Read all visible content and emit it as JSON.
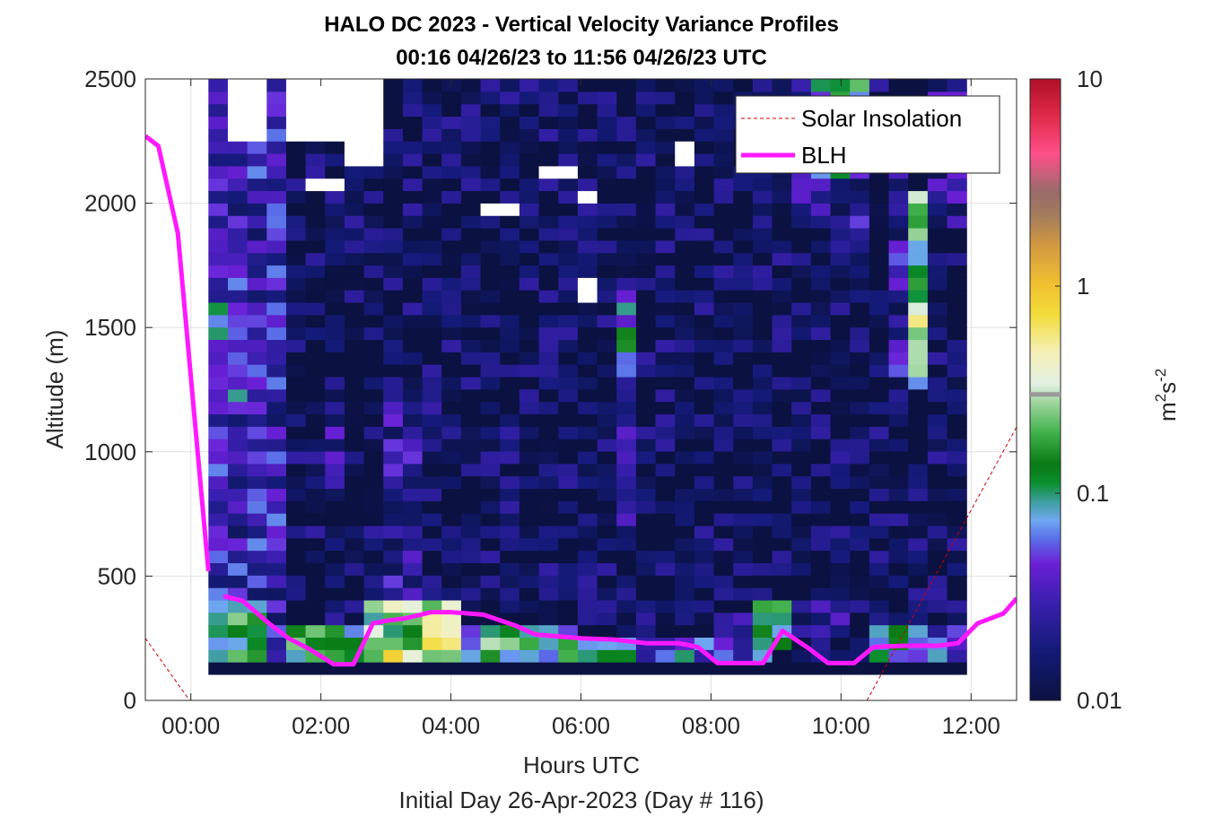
{
  "chart_data": {
    "type": "heatmap",
    "title": "HALO DC 2023 - Vertical Velocity Variance Profiles",
    "subtitle": "00:16 04/26/23 to 11:56 04/26/23  UTC",
    "xlabel": "Hours UTC",
    "xlabel2": "Initial Day 26-Apr-2023 (Day # 116)",
    "ylabel": "Altitude (m)",
    "xlim_hours": [
      -0.7,
      12.7
    ],
    "ylim": [
      0,
      2500
    ],
    "x_ticks": [
      {
        "value": 0,
        "label": "00:00"
      },
      {
        "value": 2,
        "label": "02:00"
      },
      {
        "value": 4,
        "label": "04:00"
      },
      {
        "value": 6,
        "label": "06:00"
      },
      {
        "value": 8,
        "label": "08:00"
      },
      {
        "value": 10,
        "label": "10:00"
      },
      {
        "value": 12,
        "label": "12:00"
      }
    ],
    "y_ticks": [
      {
        "value": 0,
        "label": "0"
      },
      {
        "value": 500,
        "label": "500"
      },
      {
        "value": 1000,
        "label": "1000"
      },
      {
        "value": 1500,
        "label": "1500"
      },
      {
        "value": 2000,
        "label": "2000"
      },
      {
        "value": 2500,
        "label": "2500"
      }
    ],
    "grid": true,
    "legend_position": "top-right",
    "colorbar": {
      "label_base": "m",
      "label_sup1": "2",
      "label_mid": "s",
      "label_sup2": "-2",
      "scale": "log",
      "range": [
        0.01,
        10
      ],
      "ticks": [
        {
          "value": 0.01,
          "label": "0.01"
        },
        {
          "value": 0.1,
          "label": "0.1"
        },
        {
          "value": 1,
          "label": "1"
        },
        {
          "value": 10,
          "label": "10"
        }
      ],
      "marker_value": 0.3
    },
    "heatmap": {
      "time_start_hours": 0.27,
      "time_end_hours": 11.93,
      "altitude_start_m": 105,
      "altitude_end_m": 2500,
      "columns": 39,
      "rows": 48,
      "background_value": 0.012,
      "lowest_row_value": 0.01,
      "features": [
        {
          "t0": 0.27,
          "t1": 1.6,
          "z0": 105,
          "z1": 2500,
          "value": 0.03
        },
        {
          "t0": 0.27,
          "t1": 1.3,
          "z0": 105,
          "z1": 420,
          "value": 0.15
        },
        {
          "t0": 0.27,
          "t1": 0.9,
          "z0": 1200,
          "z1": 1600,
          "value": 0.05
        },
        {
          "t0": 1.3,
          "t1": 1.6,
          "z0": 1300,
          "z1": 1550,
          "value": 0.04
        },
        {
          "t0": 1.6,
          "t1": 2.7,
          "z0": 105,
          "z1": 300,
          "value": 0.12
        },
        {
          "t0": 2.0,
          "t1": 2.4,
          "z0": 850,
          "z1": 1150,
          "value": 0.025
        },
        {
          "t0": 2.7,
          "t1": 4.1,
          "z0": 105,
          "z1": 400,
          "value": 0.2
        },
        {
          "t0": 3.1,
          "t1": 3.7,
          "z0": 105,
          "z1": 200,
          "value": 0.8
        },
        {
          "t0": 3.7,
          "t1": 4.1,
          "z0": 200,
          "z1": 330,
          "value": 0.35
        },
        {
          "t0": 3.1,
          "t1": 3.4,
          "z0": 650,
          "z1": 900,
          "value": 0.1
        },
        {
          "t0": 3.1,
          "t1": 3.7,
          "z0": 420,
          "z1": 1300,
          "value": 0.025
        },
        {
          "t0": 3.4,
          "t1": 4.0,
          "z0": 1000,
          "z1": 1200,
          "value": 0.025
        },
        {
          "t0": 4.1,
          "t1": 6.0,
          "z0": 105,
          "z1": 300,
          "value": 0.09
        },
        {
          "t0": 4.4,
          "t1": 5.0,
          "z0": 200,
          "z1": 300,
          "value": 0.2
        },
        {
          "t0": 6.0,
          "t1": 6.7,
          "z0": 105,
          "z1": 260,
          "value": 0.07
        },
        {
          "t0": 6.4,
          "t1": 6.7,
          "z0": 1300,
          "z1": 1650,
          "value": 0.09
        },
        {
          "t0": 6.4,
          "t1": 6.7,
          "z0": 700,
          "z1": 1300,
          "value": 0.02
        },
        {
          "t0": 6.7,
          "t1": 7.7,
          "z0": 105,
          "z1": 250,
          "value": 0.05
        },
        {
          "t0": 7.7,
          "t1": 8.3,
          "z0": 105,
          "z1": 250,
          "value": 0.04
        },
        {
          "t0": 8.3,
          "t1": 9.0,
          "z0": 105,
          "z1": 330,
          "value": 0.04
        },
        {
          "t0": 8.7,
          "t1": 9.3,
          "z0": 200,
          "z1": 400,
          "value": 0.09
        },
        {
          "t0": 9.3,
          "t1": 10.3,
          "z0": 105,
          "z1": 400,
          "value": 0.018
        },
        {
          "t0": 10.3,
          "t1": 11.0,
          "z0": 105,
          "z1": 280,
          "value": 0.1
        },
        {
          "t0": 11.0,
          "t1": 11.93,
          "z0": 105,
          "z1": 320,
          "value": 0.04
        },
        {
          "t0": 9.3,
          "t1": 10.3,
          "z0": 1900,
          "z1": 2500,
          "value": 0.025
        },
        {
          "t0": 9.6,
          "t1": 10.0,
          "z0": 2100,
          "z1": 2500,
          "value": 0.09
        },
        {
          "t0": 10.0,
          "t1": 10.3,
          "z0": 2300,
          "z1": 2500,
          "value": 0.1
        },
        {
          "t0": 11.1,
          "t1": 11.45,
          "z0": 1250,
          "z1": 2050,
          "value": 0.15
        },
        {
          "t0": 11.1,
          "t1": 11.45,
          "z0": 1400,
          "z1": 1600,
          "value": 0.3
        },
        {
          "t0": 10.8,
          "t1": 11.1,
          "z0": 1300,
          "z1": 2400,
          "value": 0.025
        },
        {
          "t0": 11.45,
          "t1": 11.93,
          "z0": 1900,
          "z1": 2500,
          "value": 0.025
        }
      ],
      "missing_patches": [
        {
          "t0": 0.6,
          "t1": 1.3,
          "z0": 2250,
          "z1": 2500
        },
        {
          "t0": 1.6,
          "t1": 2.9,
          "z0": 2250,
          "z1": 2500
        },
        {
          "t0": 2.4,
          "t1": 3.1,
          "z0": 2150,
          "z1": 2250
        },
        {
          "t0": 1.8,
          "t1": 2.3,
          "z0": 2030,
          "z1": 2110
        },
        {
          "t0": 4.6,
          "t1": 5.0,
          "z0": 1970,
          "z1": 2020
        },
        {
          "t0": 5.3,
          "t1": 5.6,
          "z0": 1780,
          "z1": 1820
        },
        {
          "t0": 6.0,
          "t1": 6.3,
          "z0": 1590,
          "z1": 1680
        },
        {
          "t0": 5.3,
          "t1": 5.9,
          "z0": 2110,
          "z1": 2150
        },
        {
          "t0": 5.9,
          "t1": 6.2,
          "z0": 2020,
          "z1": 2060
        },
        {
          "t0": 7.3,
          "t1": 7.6,
          "z0": 2150,
          "z1": 2250
        },
        {
          "t0": 7.3,
          "t1": 7.6,
          "z0": 1930,
          "z1": 1970
        },
        {
          "t0": 3.5,
          "t1": 4.2,
          "z0": 2490,
          "z1": 2500
        },
        {
          "t0": 5.3,
          "t1": 5.9,
          "z0": 2490,
          "z1": 2500
        }
      ]
    },
    "series": [
      {
        "name": "BLH",
        "color": "#ff19ff",
        "segments": [
          [
            [
              -0.7,
              2270
            ],
            [
              -0.5,
              2230
            ],
            [
              -0.2,
              1880
            ],
            [
              0.27,
              520
            ]
          ],
          [
            [
              0.5,
              420
            ],
            [
              0.8,
              400
            ],
            [
              1.2,
              310
            ],
            [
              1.5,
              250
            ],
            [
              1.8,
              210
            ],
            [
              2.2,
              145
            ],
            [
              2.5,
              145
            ],
            [
              2.8,
              310
            ],
            [
              3.0,
              320
            ],
            [
              3.3,
              330
            ],
            [
              3.7,
              355
            ],
            [
              4.0,
              355
            ],
            [
              4.5,
              345
            ],
            [
              5.0,
              300
            ],
            [
              5.3,
              265
            ],
            [
              6.0,
              250
            ],
            [
              6.5,
              245
            ],
            [
              7.0,
              230
            ],
            [
              7.5,
              230
            ],
            [
              7.8,
              215
            ],
            [
              8.1,
              150
            ],
            [
              8.5,
              150
            ],
            [
              8.8,
              150
            ],
            [
              9.1,
              280
            ],
            [
              9.5,
              210
            ],
            [
              9.8,
              150
            ],
            [
              10.2,
              150
            ],
            [
              10.5,
              215
            ],
            [
              11.0,
              220
            ],
            [
              11.5,
              220
            ],
            [
              11.8,
              230
            ],
            [
              12.1,
              310
            ],
            [
              12.5,
              350
            ],
            [
              12.7,
              410
            ]
          ]
        ]
      },
      {
        "name": "Solar Insolation",
        "color": "#cc0000",
        "dashed": true,
        "points": [
          [
            -0.7,
            250
          ],
          [
            -0.02,
            0
          ],
          [
            10.4,
            0
          ],
          [
            12.7,
            1100
          ]
        ]
      }
    ]
  }
}
